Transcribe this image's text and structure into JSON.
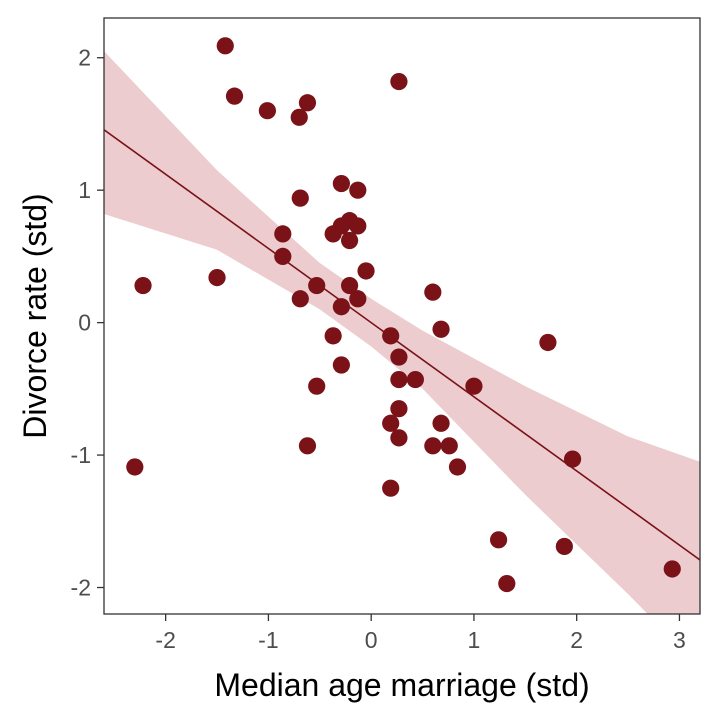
{
  "chart_data": {
    "type": "scatter",
    "title": "",
    "xlabel": "Median age marriage (std)",
    "ylabel": "Divorce rate (std)",
    "xlim": [
      -2.6,
      3.2
    ],
    "ylim": [
      -2.2,
      2.3
    ],
    "x_ticks": [
      -2,
      -1,
      0,
      1,
      2,
      3
    ],
    "y_ticks": [
      -2,
      -1,
      0,
      1,
      2
    ],
    "grid": false,
    "colors": {
      "points": "#7a1218",
      "line": "#7a1218",
      "band": "#e9c3c7"
    },
    "fit": {
      "intercept": 0.0,
      "slope": -0.56,
      "band": [
        {
          "x": -2.6,
          "lo": 0.82,
          "hi": 2.05
        },
        {
          "x": -1.5,
          "lo": 0.55,
          "hi": 1.15
        },
        {
          "x": -0.5,
          "lo": 0.1,
          "hi": 0.45
        },
        {
          "x": 0.0,
          "lo": -0.18,
          "hi": 0.18
        },
        {
          "x": 0.5,
          "lo": -0.5,
          "hi": -0.06
        },
        {
          "x": 1.5,
          "lo": -1.3,
          "hi": -0.48
        },
        {
          "x": 2.5,
          "lo": -2.05,
          "hi": -0.86
        },
        {
          "x": 3.2,
          "lo": -2.6,
          "hi": -1.05
        }
      ]
    },
    "points": [
      {
        "x": -2.3,
        "y": -1.09
      },
      {
        "x": -2.22,
        "y": 0.28
      },
      {
        "x": -1.5,
        "y": 0.34
      },
      {
        "x": -1.42,
        "y": 2.09
      },
      {
        "x": -1.33,
        "y": 1.71
      },
      {
        "x": -1.01,
        "y": 1.6
      },
      {
        "x": -0.86,
        "y": 0.67
      },
      {
        "x": -0.86,
        "y": 0.5
      },
      {
        "x": -0.7,
        "y": 1.55
      },
      {
        "x": -0.69,
        "y": 0.94
      },
      {
        "x": -0.69,
        "y": 0.18
      },
      {
        "x": -0.62,
        "y": 1.66
      },
      {
        "x": -0.62,
        "y": -0.93
      },
      {
        "x": -0.53,
        "y": 0.28
      },
      {
        "x": -0.53,
        "y": -0.48
      },
      {
        "x": -0.37,
        "y": 0.67
      },
      {
        "x": -0.37,
        "y": -0.1
      },
      {
        "x": -0.29,
        "y": 1.05
      },
      {
        "x": -0.29,
        "y": 0.73
      },
      {
        "x": -0.29,
        "y": 0.12
      },
      {
        "x": -0.29,
        "y": -0.32
      },
      {
        "x": -0.21,
        "y": 0.77
      },
      {
        "x": -0.21,
        "y": 0.62
      },
      {
        "x": -0.21,
        "y": 0.28
      },
      {
        "x": -0.13,
        "y": 1.0
      },
      {
        "x": -0.13,
        "y": 0.73
      },
      {
        "x": -0.13,
        "y": 0.18
      },
      {
        "x": -0.05,
        "y": 0.39
      },
      {
        "x": 0.19,
        "y": -0.1
      },
      {
        "x": 0.19,
        "y": -0.76
      },
      {
        "x": 0.19,
        "y": -1.25
      },
      {
        "x": 0.27,
        "y": 1.82
      },
      {
        "x": 0.27,
        "y": -0.26
      },
      {
        "x": 0.27,
        "y": -0.43
      },
      {
        "x": 0.27,
        "y": -0.65
      },
      {
        "x": 0.27,
        "y": -0.87
      },
      {
        "x": 0.43,
        "y": -0.43
      },
      {
        "x": 0.6,
        "y": 0.23
      },
      {
        "x": 0.6,
        "y": -0.93
      },
      {
        "x": 0.68,
        "y": -0.05
      },
      {
        "x": 0.68,
        "y": -0.76
      },
      {
        "x": 0.76,
        "y": -0.93
      },
      {
        "x": 0.84,
        "y": -1.09
      },
      {
        "x": 1.0,
        "y": -0.48
      },
      {
        "x": 1.24,
        "y": -1.64
      },
      {
        "x": 1.32,
        "y": -1.97
      },
      {
        "x": 1.72,
        "y": -0.15
      },
      {
        "x": 1.88,
        "y": -1.69
      },
      {
        "x": 1.96,
        "y": -1.03
      },
      {
        "x": 2.93,
        "y": -1.86
      }
    ]
  }
}
